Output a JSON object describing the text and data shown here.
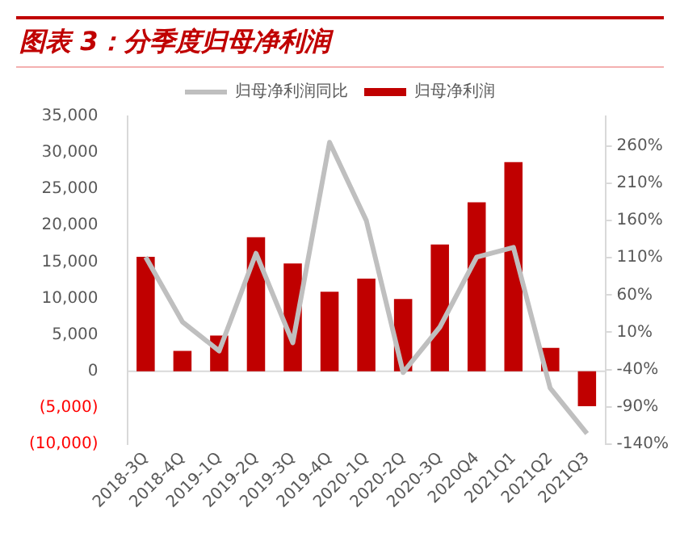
{
  "chart_data": {
    "type": "bar",
    "title": "图表 3：分季度归母净利润",
    "categories": [
      "2018-3Q",
      "2018-4Q",
      "2019-1Q",
      "2019-2Q",
      "2019-3Q",
      "2019-4Q",
      "2020-1Q",
      "2020-2Q",
      "2020-3Q",
      "2020Q4",
      "2021Q1",
      "2021Q2",
      "2021Q3"
    ],
    "series": [
      {
        "name": "归母净利润",
        "color": "#c00000",
        "values": [
          15700,
          2800,
          4900,
          18400,
          14800,
          10900,
          12700,
          9900,
          17400,
          23200,
          28700,
          3200,
          -4800
        ]
      },
      {
        "name": "归母净利润同比",
        "type": "line",
        "axis": "y2",
        "color": "#bfbfbf",
        "values": [
          111,
          24,
          -15,
          116,
          -4,
          265,
          160,
          -44,
          17,
          111,
          124,
          -65,
          -126
        ]
      }
    ],
    "ylim": [
      -10000,
      35000
    ],
    "yticks": [
      {
        "value": -10000,
        "label": "(10,000)"
      },
      {
        "value": -5000,
        "label": "(5,000)"
      },
      0,
      {
        "value": 5000,
        "label": "5,000"
      },
      {
        "value": 10000,
        "label": "10,000"
      },
      {
        "value": 15000,
        "label": "15,000"
      },
      {
        "value": 20000,
        "label": "20,000"
      },
      {
        "value": 25000,
        "label": "25,000"
      },
      {
        "value": 30000,
        "label": "30,000"
      },
      {
        "value": 35000,
        "label": "35,000"
      }
    ],
    "y2lim": [
      -140,
      300
    ],
    "y2ticks": [
      {
        "value": -140,
        "label": "-140%"
      },
      {
        "value": -90,
        "label": "-90%"
      },
      {
        "value": -40,
        "label": "-40%"
      },
      {
        "value": 10,
        "label": "10%"
      },
      {
        "value": 60,
        "label": "60%"
      },
      {
        "value": 110,
        "label": "110%"
      },
      {
        "value": 160,
        "label": "160%"
      },
      {
        "value": 210,
        "label": "210%"
      },
      {
        "value": 260,
        "label": "260%"
      }
    ],
    "legend": "top"
  }
}
